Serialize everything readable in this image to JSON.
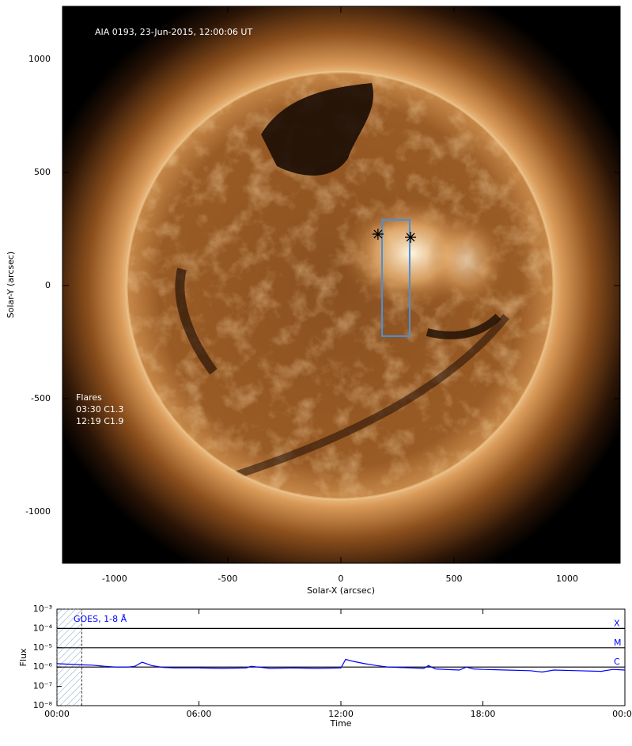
{
  "chart_data": [
    {
      "type": "image",
      "title": "AIA 0193, 23-Jun-2015, 12:00:06 UT",
      "xlabel": "Solar-X (arcsec)",
      "ylabel": "Solar-Y (arcsec)",
      "xlim": [
        -1230,
        1234
      ],
      "ylim": [
        -1228,
        1234
      ],
      "xticks": [
        -1000,
        -500,
        0,
        500,
        1000
      ],
      "yticks": [
        -1000,
        -500,
        0,
        500,
        1000
      ],
      "annotations": [
        "Flares",
        "03:30 C1.3",
        "12:19 C1.9"
      ],
      "box": {
        "x": [
          182,
          304
        ],
        "y": [
          -224,
          290
        ],
        "color": "#4a90d9"
      },
      "markers": {
        "x": [
          164,
          308
        ],
        "y": [
          227,
          213
        ],
        "color": "#000000"
      }
    },
    {
      "type": "line",
      "xlabel": "Time",
      "ylabel": "Flux",
      "xlim": [
        0,
        24
      ],
      "ylim": [
        1e-08,
        0.001
      ],
      "log_y": true,
      "xticks": [
        {
          "value": 0,
          "label": "00:00"
        },
        {
          "value": 6,
          "label": "06:00"
        },
        {
          "value": 12,
          "label": "12:00"
        },
        {
          "value": 18,
          "label": "18:00"
        },
        {
          "value": 24,
          "label": "00:00"
        }
      ],
      "yticks": [
        {
          "value": 1e-08,
          "label": "10⁻⁸"
        },
        {
          "value": 1e-07,
          "label": "10⁻⁷"
        },
        {
          "value": 1e-06,
          "label": "10⁻⁶"
        },
        {
          "value": 1e-05,
          "label": "10⁻⁵"
        },
        {
          "value": 0.0001,
          "label": "10⁻⁴"
        },
        {
          "value": 0.001,
          "label": "10⁻³"
        }
      ],
      "levels": {
        "values": [
          0.0001,
          1e-05,
          1e-06
        ],
        "labels": [
          "X",
          "M",
          "C"
        ],
        "color": "#0000ff"
      },
      "shaded": [
        0,
        1.05
      ],
      "series": [
        {
          "name": "GOES, 1-8 Å",
          "color": "#0000ff",
          "x": [
            0,
            0.5,
            1,
            1.5,
            2,
            2.5,
            3,
            3.3,
            3.6,
            4,
            4.5,
            5,
            6,
            7,
            8,
            8.2,
            9,
            10,
            11,
            12,
            12.2,
            12.5,
            13,
            13.5,
            14,
            15,
            15.5,
            15.7,
            16,
            17,
            17.3,
            17.6,
            18,
            19,
            20,
            20.5,
            21,
            22,
            23,
            23.5,
            24
          ],
          "values": [
            1.5e-06,
            1.4e-06,
            1.3e-06,
            1.25e-06,
            1.1e-06,
            1e-06,
            1e-06,
            1.1e-06,
            1.8e-06,
            1.2e-06,
            9.5e-07,
            9e-07,
            9e-07,
            8.5e-07,
            9e-07,
            1.1e-06,
            8.5e-07,
            9e-07,
            8.5e-07,
            9e-07,
            2.5e-06,
            2e-06,
            1.5e-06,
            1.2e-06,
            1e-06,
            9e-07,
            8.5e-07,
            1.2e-06,
            8e-07,
            7e-07,
            1e-06,
            8e-07,
            7.5e-07,
            7e-07,
            6.5e-07,
            5.5e-07,
            7e-07,
            6.5e-07,
            6e-07,
            7.5e-07,
            7e-07
          ]
        }
      ]
    }
  ]
}
